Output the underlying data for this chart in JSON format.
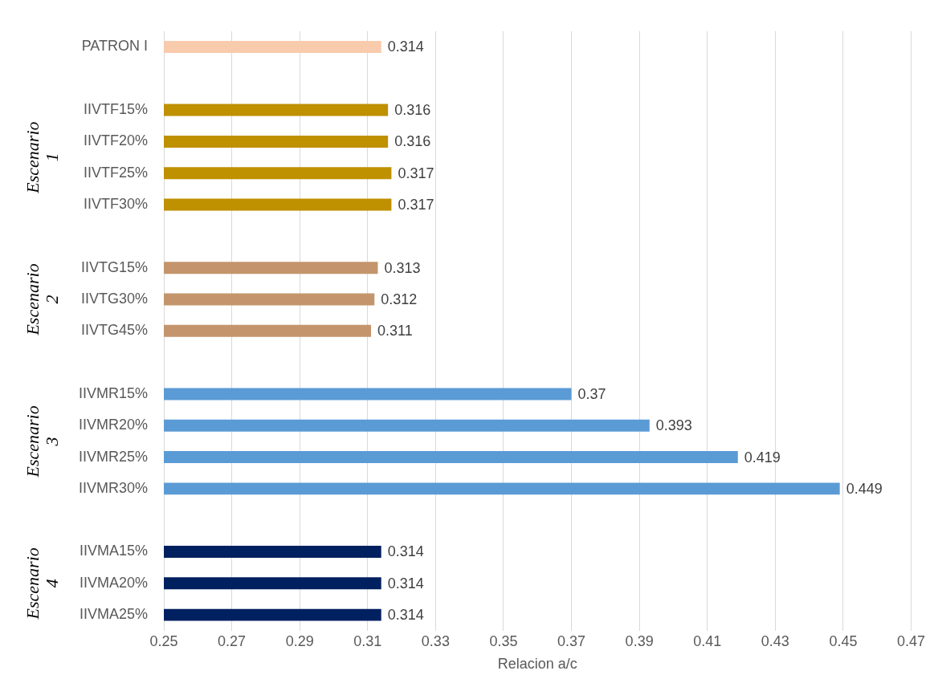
{
  "chart_data": {
    "type": "bar",
    "orientation": "horizontal",
    "xlabel": "Relacion a/c",
    "categories": [
      "PATRON I",
      null,
      "IIVTF15%",
      "IIVTF20%",
      "IIVTF25%",
      "IIVTF30%",
      null,
      "IIVTG15%",
      "IIVTG30%",
      "IIVTG45%",
      null,
      "IIVMR15%",
      "IIVMR20%",
      "IIVMR25%",
      "IIVMR30%",
      null,
      "IIVMA15%",
      "IIVMA20%",
      "IIVMA25%"
    ],
    "values": [
      0.314,
      null,
      0.316,
      0.316,
      0.317,
      0.317,
      null,
      0.313,
      0.312,
      0.311,
      null,
      0.37,
      0.393,
      0.419,
      0.449,
      null,
      0.314,
      0.314,
      0.314
    ],
    "colors": [
      "#f8cbad",
      "#ffffff",
      "#bf9000",
      "#bf9000",
      "#bf9000",
      "#bf9000",
      "#ffffff",
      "#c4956c",
      "#c4956c",
      "#c4956c",
      "#ffffff",
      "#5b9bd5",
      "#5b9bd5",
      "#5b9bd5",
      "#5b9bd5",
      "#ffffff",
      "#002060",
      "#002060",
      "#002060"
    ],
    "xlim": [
      0.25,
      0.47
    ],
    "xticks": [
      0.25,
      0.27,
      0.29,
      0.31,
      0.33,
      0.35,
      0.37,
      0.39,
      0.41,
      0.43,
      0.45,
      0.47
    ],
    "grid": "x",
    "legend": false,
    "data_labels": true,
    "annotations": [
      "Escenario 1",
      "Escenario 2",
      "Escenario 3",
      "Escenario 4"
    ]
  }
}
